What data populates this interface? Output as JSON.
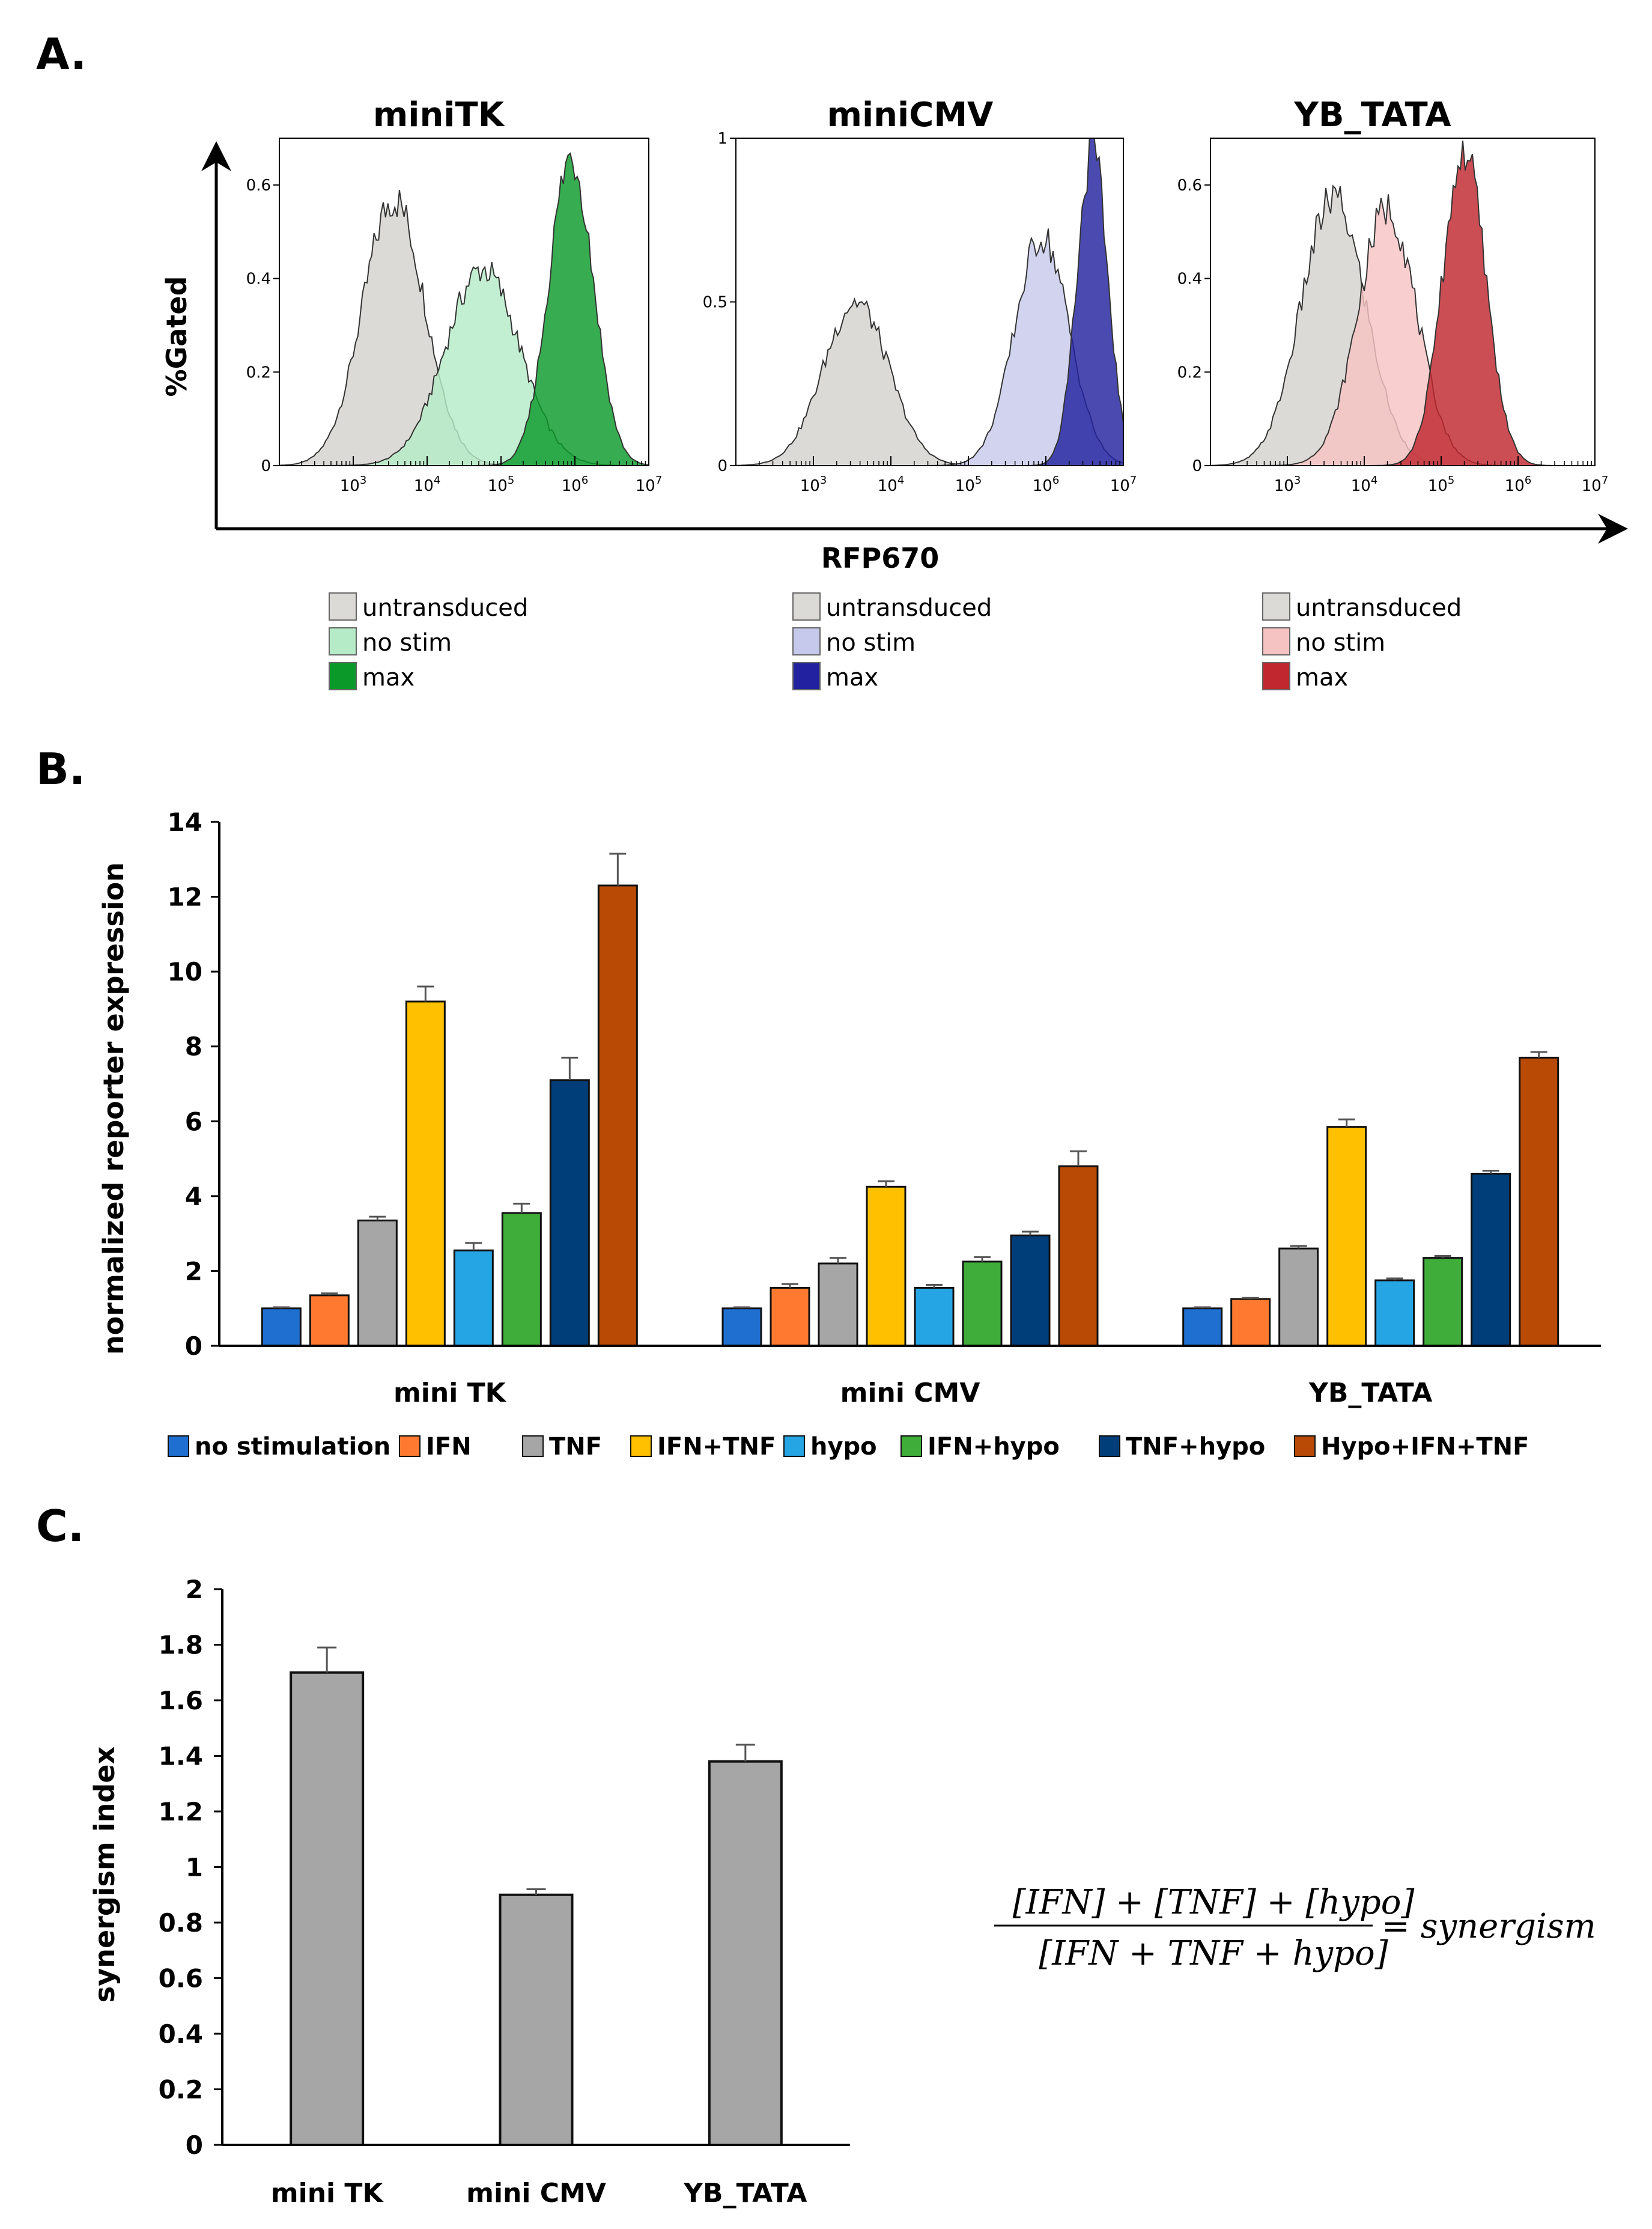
{
  "panels": {
    "a": "A.",
    "b": "B.",
    "c": "C."
  },
  "colors": {
    "bar_gray": "#a6a6a6",
    "axis": "#000000"
  },
  "chart_data": [
    {
      "id": "A",
      "type": "histogram",
      "ylabel": "%Gated",
      "xlabel": "RFP670",
      "x_scale": "log",
      "xlim": [
        100,
        10000000
      ],
      "x_ticks": [
        {
          "base": "10",
          "exp": "3"
        },
        {
          "base": "10",
          "exp": "4"
        },
        {
          "base": "10",
          "exp": "5"
        },
        {
          "base": "10",
          "exp": "6"
        },
        {
          "base": "10",
          "exp": "7"
        }
      ],
      "subplots": [
        {
          "title": "miniTK",
          "ylim": [
            0,
            0.7
          ],
          "y_ticks": [
            "0",
            "0.2",
            "0.4",
            "0.6"
          ],
          "y_tick_values": [
            0,
            0.2,
            0.4,
            0.6
          ],
          "series": [
            {
              "name": "untransduced",
              "color": "#dcdad6",
              "peak_log10": 3.55,
              "sd": 0.42,
              "height": 0.57
            },
            {
              "name": "no stim",
              "color": "#b5ecc7",
              "peak_log10": 4.75,
              "sd": 0.5,
              "height": 0.42
            },
            {
              "name": "max",
              "color": "#0b9a2a",
              "peak_log10": 5.95,
              "sd": 0.3,
              "height": 0.66
            }
          ],
          "legend": [
            {
              "label": "untransduced",
              "color": "#dcdad6"
            },
            {
              "label": "no stim",
              "color": "#b5ecc7"
            },
            {
              "label": "max",
              "color": "#0b9a2a"
            }
          ]
        },
        {
          "title": "miniCMV",
          "ylim": [
            0,
            1
          ],
          "y_ticks": [
            "0",
            "0.5",
            "1"
          ],
          "y_tick_values": [
            0,
            0.5,
            1
          ],
          "series": [
            {
              "name": "untransduced",
              "color": "#dcdad6",
              "peak_log10": 3.55,
              "sd": 0.42,
              "height": 0.5
            },
            {
              "name": "no stim",
              "color": "#c7c9ec",
              "peak_log10": 5.95,
              "sd": 0.35,
              "height": 0.7
            },
            {
              "name": "max",
              "color": "#2222a0",
              "peak_log10": 6.6,
              "sd": 0.2,
              "height": 0.96
            }
          ],
          "legend": [
            {
              "label": "untransduced",
              "color": "#dcdad6"
            },
            {
              "label": "no stim",
              "color": "#c7c9ec"
            },
            {
              "label": "max",
              "color": "#2222a0"
            }
          ]
        },
        {
          "title": "YB_TATA",
          "ylim": [
            0,
            0.7
          ],
          "y_ticks": [
            "0",
            "0.2",
            "0.4",
            "0.6"
          ],
          "y_tick_values": [
            0,
            0.2,
            0.4,
            0.6
          ],
          "series": [
            {
              "name": "untransduced",
              "color": "#dcdad6",
              "peak_log10": 3.6,
              "sd": 0.42,
              "height": 0.57
            },
            {
              "name": "no stim",
              "color": "#f6c3c3",
              "peak_log10": 4.3,
              "sd": 0.38,
              "height": 0.55
            },
            {
              "name": "max",
              "color": "#c0272e",
              "peak_log10": 5.3,
              "sd": 0.28,
              "height": 0.67
            }
          ],
          "legend": [
            {
              "label": "untransduced",
              "color": "#dcdad6"
            },
            {
              "label": "no stim",
              "color": "#f6c3c3"
            },
            {
              "label": "max",
              "color": "#c0272e"
            }
          ]
        }
      ]
    },
    {
      "id": "B",
      "type": "bar",
      "ylabel": "normalized reporter expression",
      "ylim": [
        0,
        14
      ],
      "y_ticks": [
        0,
        2,
        4,
        6,
        8,
        10,
        12,
        14
      ],
      "categories": [
        "mini TK",
        "mini CMV",
        "YB_TATA"
      ],
      "series": [
        {
          "name": "no stimulation",
          "color": "#1f6fd1",
          "values": [
            1.0,
            1.0,
            1.0
          ],
          "errors": [
            0.03,
            0.03,
            0.03
          ]
        },
        {
          "name": "IFN",
          "color": "#ff7a30",
          "values": [
            1.35,
            1.55,
            1.25
          ],
          "errors": [
            0.05,
            0.1,
            0.03
          ]
        },
        {
          "name": "TNF",
          "color": "#a6a6a6",
          "values": [
            3.35,
            2.2,
            2.6
          ],
          "errors": [
            0.1,
            0.15,
            0.07
          ]
        },
        {
          "name": "IFN+TNF",
          "color": "#ffc000",
          "values": [
            9.2,
            4.25,
            5.85
          ],
          "errors": [
            0.4,
            0.15,
            0.2
          ]
        },
        {
          "name": "hypo",
          "color": "#26a5e4",
          "values": [
            2.55,
            1.55,
            1.75
          ],
          "errors": [
            0.2,
            0.08,
            0.05
          ]
        },
        {
          "name": "IFN+hypo",
          "color": "#3fad3a",
          "values": [
            3.55,
            2.25,
            2.35
          ],
          "errors": [
            0.25,
            0.12,
            0.05
          ]
        },
        {
          "name": "TNF+hypo",
          "color": "#003e7a",
          "values": [
            7.1,
            2.95,
            4.6
          ],
          "errors": [
            0.6,
            0.1,
            0.08
          ]
        },
        {
          "name": "Hypo+IFN+TNF",
          "color": "#b84a05",
          "values": [
            12.3,
            4.8,
            7.7
          ],
          "errors": [
            0.85,
            0.4,
            0.15
          ]
        }
      ]
    },
    {
      "id": "C",
      "type": "bar",
      "ylabel": "synergism index",
      "ylim": [
        0,
        2
      ],
      "y_ticks": [
        "0",
        "0.2",
        "0.4",
        "0.6",
        "0.8",
        "1",
        "1.2",
        "1.4",
        "1.6",
        "1.8",
        "2"
      ],
      "y_tick_values": [
        0,
        0.2,
        0.4,
        0.6,
        0.8,
        1,
        1.2,
        1.4,
        1.6,
        1.8,
        2
      ],
      "categories": [
        "mini TK",
        "mini CMV",
        "YB_TATA"
      ],
      "values": [
        1.7,
        0.9,
        1.38
      ],
      "errors": [
        0.09,
        0.02,
        0.06
      ],
      "formula": {
        "numerator": "[IFN] + [TNF] + [hypo]",
        "denominator": "[IFN + TNF + hypo]",
        "result": "= synergism"
      }
    }
  ]
}
